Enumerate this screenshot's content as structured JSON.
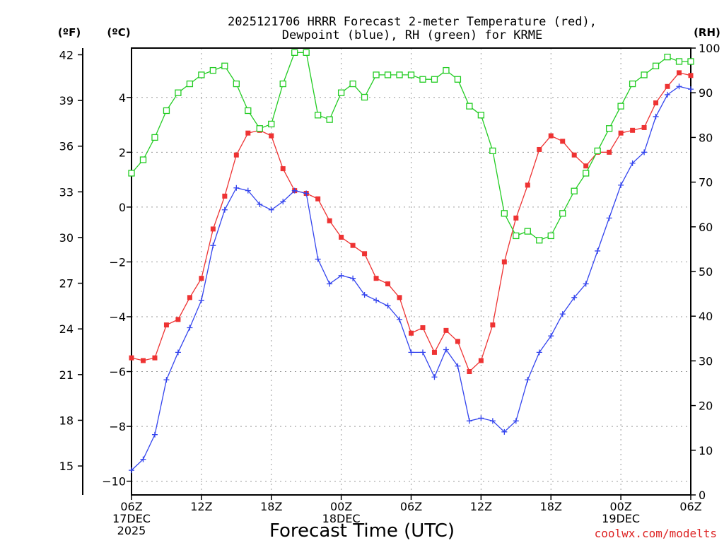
{
  "chart_data": {
    "type": "line",
    "title_line1": "2025121706 HRRR Forecast 2-meter Temperature (red),",
    "title_line2": "Dewpoint (blue), RH (green) for KRME",
    "xlabel": "Forecast Time (UTC)",
    "credit": "coolwx.com/modelts",
    "unit_left_f": "(ºF)",
    "unit_left_c": "(ºC)",
    "unit_right": "(RH)",
    "x_hours_range": [
      0,
      48
    ],
    "y_celsius_range": [
      -10.5,
      5.8
    ],
    "y_rh_range": [
      0,
      100
    ],
    "x_ticks": [
      {
        "hour": 0,
        "lines": [
          "06Z",
          "17DEC",
          "2025"
        ]
      },
      {
        "hour": 6,
        "lines": [
          "12Z"
        ]
      },
      {
        "hour": 12,
        "lines": [
          "18Z"
        ]
      },
      {
        "hour": 18,
        "lines": [
          "00Z",
          "18DEC"
        ]
      },
      {
        "hour": 24,
        "lines": [
          "06Z"
        ]
      },
      {
        "hour": 30,
        "lines": [
          "12Z"
        ]
      },
      {
        "hour": 36,
        "lines": [
          "18Z"
        ]
      },
      {
        "hour": 42,
        "lines": [
          "00Z",
          "19DEC"
        ]
      },
      {
        "hour": 48,
        "lines": [
          "06Z"
        ]
      }
    ],
    "y_ticks_celsius": [
      -10,
      -8,
      -6,
      -4,
      -2,
      0,
      2,
      4
    ],
    "y_ticks_fahrenheit": [
      15,
      18,
      21,
      24,
      27,
      30,
      33,
      36,
      39,
      42
    ],
    "y_ticks_rh": [
      0,
      10,
      20,
      30,
      40,
      50,
      60,
      70,
      80,
      90,
      100
    ],
    "series": [
      {
        "name": "2-meter Temperature",
        "unit": "C",
        "color": "#ee3333",
        "marker": "filled-square",
        "values": [
          -5.5,
          -5.6,
          -5.5,
          -4.3,
          -4.1,
          -3.3,
          -2.6,
          -0.8,
          0.4,
          1.9,
          2.7,
          2.8,
          2.6,
          1.4,
          0.6,
          0.5,
          0.3,
          -0.5,
          -1.1,
          -1.4,
          -1.7,
          -2.6,
          -2.8,
          -3.3,
          -4.6,
          -4.4,
          -5.3,
          -4.5,
          -4.9,
          -6.0,
          -5.6,
          -4.3,
          -2.0,
          -0.4,
          0.8,
          2.1,
          2.6,
          2.4,
          1.9,
          1.5,
          2.0,
          2.0,
          2.7,
          2.8,
          2.9,
          3.8,
          4.4,
          4.9,
          4.8
        ]
      },
      {
        "name": "Dewpoint",
        "unit": "C",
        "color": "#3344ee",
        "marker": "plus",
        "values": [
          -9.6,
          -9.2,
          -8.3,
          -6.3,
          -5.3,
          -4.4,
          -3.4,
          -1.4,
          -0.1,
          0.7,
          0.6,
          0.1,
          -0.1,
          0.2,
          0.6,
          0.5,
          -1.9,
          -2.8,
          -2.5,
          -2.6,
          -3.2,
          -3.4,
          -3.6,
          -4.1,
          -5.3,
          -5.3,
          -6.2,
          -5.2,
          -5.8,
          -7.8,
          -7.7,
          -7.8,
          -8.2,
          -7.8,
          -6.3,
          -5.3,
          -4.7,
          -3.9,
          -3.3,
          -2.8,
          -1.6,
          -0.4,
          0.8,
          1.6,
          2.0,
          3.3,
          4.1,
          4.4,
          4.3
        ]
      },
      {
        "name": "RH",
        "unit": "%",
        "color": "#22cc22",
        "marker": "open-square",
        "values": [
          72,
          75,
          80,
          86,
          90,
          92,
          94,
          95,
          96,
          92,
          86,
          82,
          83,
          92,
          99,
          99,
          85,
          84,
          90,
          92,
          89,
          94,
          94,
          94,
          94,
          93,
          93,
          95,
          93,
          87,
          85,
          77,
          63,
          58,
          59,
          57,
          58,
          63,
          68,
          72,
          77,
          82,
          87,
          92,
          94,
          96,
          98,
          97,
          97
        ]
      }
    ]
  }
}
